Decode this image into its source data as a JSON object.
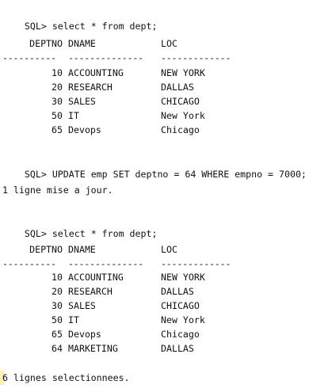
{
  "terminal": {
    "prompt": "SQL>",
    "query1": "select * from dept;",
    "table1": {
      "headers": [
        "DEPTNO",
        "DNAME",
        "LOC"
      ],
      "separator": [
        "----------",
        "--------------",
        "-------------"
      ],
      "rows": [
        [
          "10",
          "ACCOUNTING",
          "NEW YORK"
        ],
        [
          "20",
          "RESEARCH",
          "DALLAS"
        ],
        [
          "30",
          "SALES",
          "CHICAGO"
        ],
        [
          "50",
          "IT",
          "New York"
        ],
        [
          "65",
          "Devops",
          "Chicago"
        ]
      ]
    },
    "query2": "UPDATE emp SET deptno = 64 WHERE empno = 7000;",
    "result2": "1 ligne mise a jour.",
    "query3": "select * from dept;",
    "table2": {
      "headers": [
        "DEPTNO",
        "DNAME",
        "LOC"
      ],
      "separator": [
        "----------",
        "--------------",
        "-------------"
      ],
      "rows": [
        [
          "10",
          "ACCOUNTING",
          "NEW YORK"
        ],
        [
          "20",
          "RESEARCH",
          "DALLAS"
        ],
        [
          "30",
          "SALES",
          "CHICAGO"
        ],
        [
          "50",
          "IT",
          "New York"
        ],
        [
          "65",
          "Devops",
          "Chicago"
        ],
        [
          "64",
          "MARKETING",
          "DALLAS"
        ]
      ]
    },
    "result3": "6 lignes selectionnees.",
    "highlight_color": "#fff2b8"
  }
}
